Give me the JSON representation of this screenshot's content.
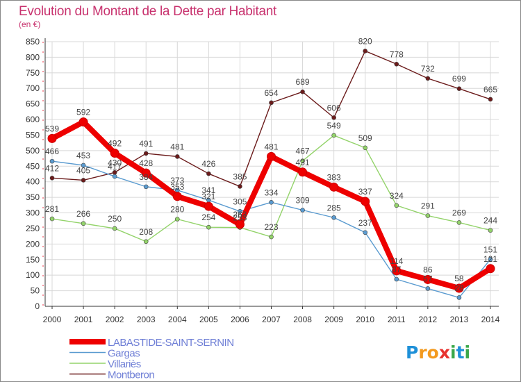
{
  "chart_data": {
    "type": "line",
    "title": "Evolution du Montant de la Dette par Habitant",
    "subtitle": "(en €)",
    "xlabel": "",
    "ylabel": "",
    "ylim": [
      0,
      850
    ],
    "yticks": [
      0,
      50,
      100,
      150,
      200,
      250,
      300,
      350,
      400,
      450,
      500,
      550,
      600,
      650,
      700,
      750,
      800,
      850
    ],
    "grid": true,
    "legend_position": "bottom-left",
    "x": [
      "2000",
      "2001",
      "2002",
      "2003",
      "2004",
      "2005",
      "2006",
      "2007",
      "2008",
      "2009",
      "2010",
      "2011",
      "2012",
      "2013",
      "2014"
    ],
    "series": [
      {
        "name": "Montberon",
        "color": "#6b1b1b",
        "values": [
          412,
          405,
          430,
          491,
          481,
          426,
          385,
          654,
          689,
          606,
          820,
          778,
          732,
          699,
          665
        ]
      },
      {
        "name": "Villariès",
        "color": "#93d36a",
        "values": [
          281,
          266,
          250,
          208,
          280,
          254,
          253,
          223,
          467,
          549,
          509,
          324,
          291,
          269,
          244
        ]
      },
      {
        "name": "Gargas",
        "color": "#5a9bd0",
        "values": [
          466,
          453,
          417,
          384,
          373,
          341,
          305,
          334,
          309,
          285,
          237,
          87,
          57,
          28,
          151
        ]
      },
      {
        "name": "LABASTIDE-SAINT-SERNIN",
        "color": "#ee0000",
        "values": [
          539,
          592,
          492,
          428,
          353,
          321,
          263,
          481,
          431,
          383,
          337,
          114,
          86,
          58,
          121
        ]
      }
    ]
  },
  "colors": {
    "title": "#c8326e",
    "grid": "#d8d8d8",
    "axis": "#333333",
    "legend_text": "#6f7fd6"
  },
  "logo": {
    "text": "Proxiti"
  }
}
